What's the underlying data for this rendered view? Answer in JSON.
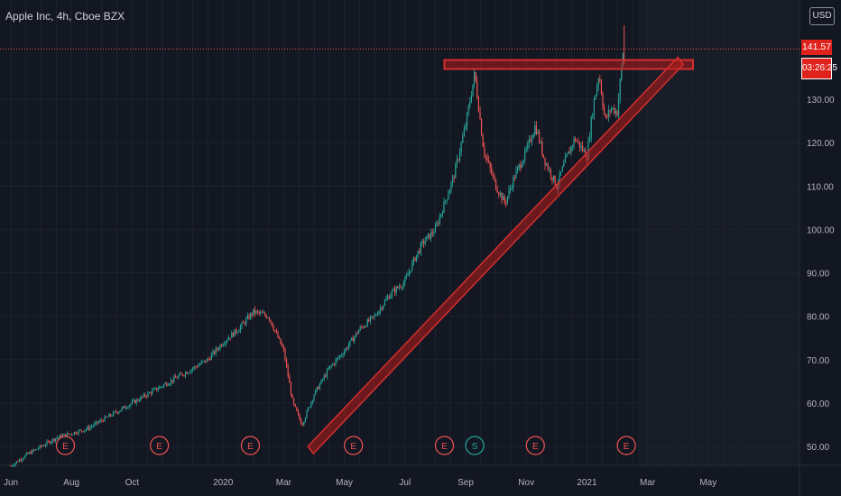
{
  "header": {
    "title": "Apple Inc, 4h, Cboe BZX",
    "currency": "USD"
  },
  "price_axis": {
    "current_price": "141.57",
    "countdown": "03:26:25"
  },
  "chart_data": {
    "type": "line",
    "title": "Apple Inc, 4h, Cboe BZX",
    "xlabel": "",
    "ylabel": "",
    "ylim": [
      45,
      165
    ],
    "y_ticks": [
      "130.00",
      "120.00",
      "110.00",
      "100.00",
      "90.00",
      "80.00",
      "70.00",
      "60.00",
      "50.00"
    ],
    "x_ticks": [
      "Jun",
      "Aug",
      "Oct",
      "2020",
      "Mar",
      "May",
      "Jul",
      "Sep",
      "Nov",
      "2021",
      "Mar",
      "May"
    ],
    "x_tick_positions_month_index": [
      0,
      2,
      4,
      7,
      9,
      11,
      13,
      15,
      17,
      19,
      21,
      23
    ],
    "series": [
      {
        "values_month_index": [
          0,
          0.5,
          1,
          1.5,
          2,
          2.5,
          3,
          3.5,
          4,
          4.5,
          5,
          5.5,
          6,
          6.5,
          7,
          7.5,
          8,
          8.5,
          9,
          9.3,
          9.6,
          10,
          10.5,
          11,
          11.5,
          12,
          12.5,
          13,
          13.3,
          13.6,
          14,
          14.3,
          14.6,
          15,
          15.3,
          15.6,
          16,
          16.3,
          16.6,
          17,
          17.3,
          17.6,
          18,
          18.3,
          18.6,
          19,
          19.2,
          19.4,
          19.6,
          19.8,
          20,
          20.2
        ],
        "values": [
          45.5,
          48,
          50,
          52,
          53,
          54,
          56,
          58,
          60,
          62,
          64,
          66,
          68,
          70,
          74,
          77,
          81,
          80,
          72,
          60,
          55,
          62,
          68,
          72,
          77,
          80,
          85,
          88,
          93,
          97,
          100,
          106,
          112,
          124,
          136,
          118,
          110,
          106,
          112,
          118,
          124,
          116,
          110,
          116,
          121,
          117,
          128,
          136,
          125,
          128,
          127,
          141.5
        ]
      }
    ],
    "annotations": {
      "resistance_level": 138,
      "support_trendline_start": {
        "month_index": 9.8,
        "value": 50
      },
      "support_trendline_end": {
        "month_index": 22,
        "value": 138
      },
      "current_price_line": 141.57
    },
    "events": [
      {
        "label": "E",
        "month_index": 1.8
      },
      {
        "label": "E",
        "month_index": 4.9
      },
      {
        "label": "E",
        "month_index": 7.9
      },
      {
        "label": "E",
        "month_index": 11.3
      },
      {
        "label": "E",
        "month_index": 14.3
      },
      {
        "label": "S",
        "month_index": 15.3
      },
      {
        "label": "E",
        "month_index": 17.3
      },
      {
        "label": "E",
        "month_index": 20.3
      }
    ],
    "grid": true,
    "legend": "none"
  },
  "colors": {
    "background": "#131722",
    "grid": "#1e222d",
    "up": "#26a69a",
    "down": "#ef5350",
    "drawing": "#b71c1c",
    "axis_text": "#b2b5be",
    "badge": "#e0221c"
  }
}
